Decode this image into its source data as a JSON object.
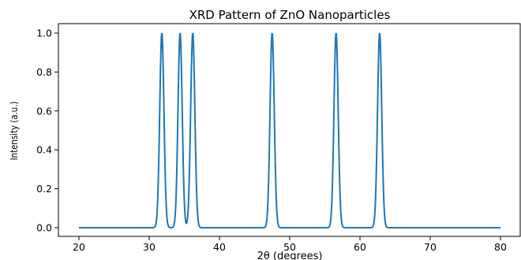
{
  "chart_data": {
    "type": "line",
    "title": "XRD Pattern of ZnO Nanoparticles",
    "xlabel": "2θ (degrees)",
    "ylabel": "Intensity (a.u.)",
    "xlim": [
      20,
      80
    ],
    "ylim": [
      0.0,
      1.0
    ],
    "x_ticks": [
      20,
      30,
      40,
      50,
      60,
      70,
      80
    ],
    "x_tick_labels": [
      "20",
      "30",
      "40",
      "50",
      "60",
      "70",
      "80"
    ],
    "y_ticks": [
      0.0,
      0.2,
      0.4,
      0.6,
      0.8,
      1.0
    ],
    "y_tick_labels": [
      "0.0",
      "0.2",
      "0.4",
      "0.6",
      "0.8",
      "1.0"
    ],
    "grid": false,
    "series": [
      {
        "color": "#1f77b4",
        "x_range": [
          20,
          80
        ],
        "baseline": 0.0,
        "peaks": [
          {
            "center": 31.8,
            "height": 1.0
          },
          {
            "center": 34.4,
            "height": 1.0
          },
          {
            "center": 36.2,
            "height": 1.0
          },
          {
            "center": 47.5,
            "height": 1.0
          },
          {
            "center": 56.6,
            "height": 1.0
          },
          {
            "center": 62.8,
            "height": 1.0
          }
        ],
        "peak_sigma": 0.3
      }
    ]
  }
}
